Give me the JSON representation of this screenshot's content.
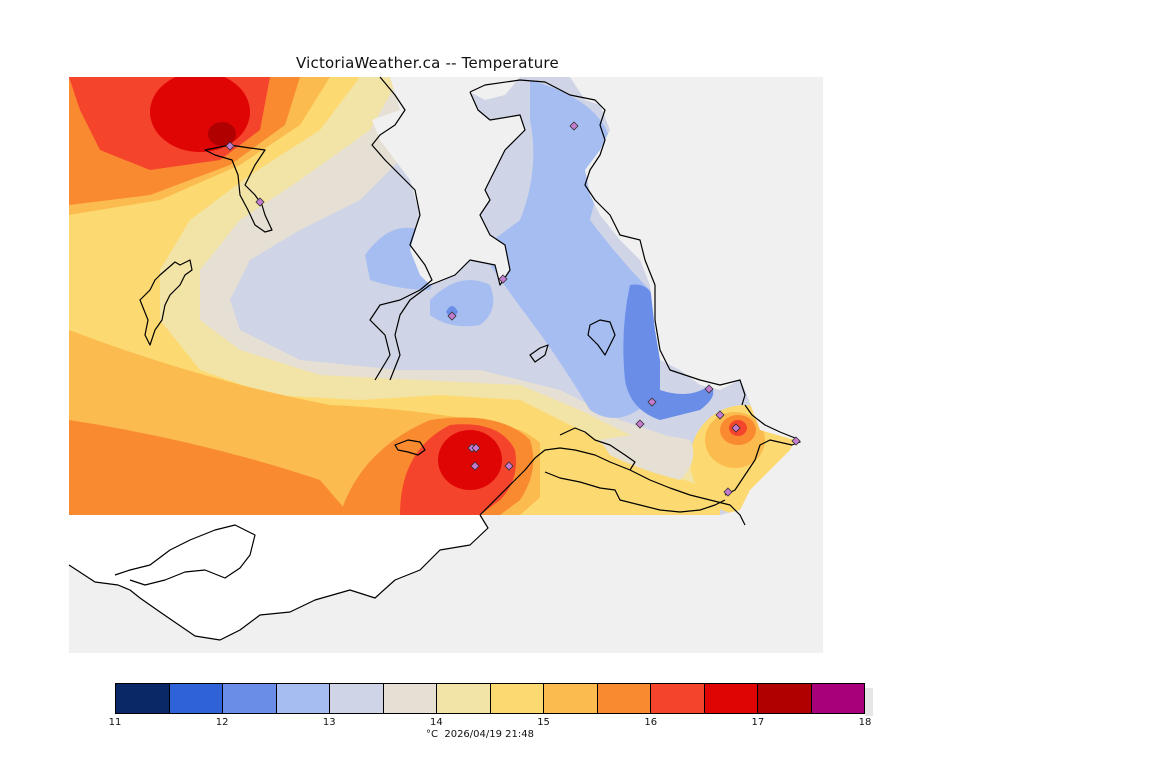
{
  "title": "VictoriaWeather.ca -- Temperature",
  "colorbar": {
    "unit_and_time": "°C  2026/04/19 21:48",
    "ticks": [
      "11",
      "12",
      "13",
      "14",
      "15",
      "16",
      "17",
      "18"
    ],
    "bins": [
      {
        "range": "11-11.5",
        "color": "#0a2866"
      },
      {
        "range": "11.5-12",
        "color": "#2e62d6"
      },
      {
        "range": "12-12.5",
        "color": "#6a8ee8"
      },
      {
        "range": "12.5-13",
        "color": "#a6bdf2"
      },
      {
        "range": "13-13.5",
        "color": "#cfd4e6"
      },
      {
        "range": "13.5-14",
        "color": "#e6e0d4"
      },
      {
        "range": "14-14.5",
        "color": "#f2e3a6"
      },
      {
        "range": "14.5-15",
        "color": "#fcd971"
      },
      {
        "range": "15-15.5",
        "color": "#fbbb4e"
      },
      {
        "range": "15.5-16",
        "color": "#fa8a30"
      },
      {
        "range": "16-16.5",
        "color": "#f5442c"
      },
      {
        "range": "16.5-17",
        "color": "#e00505"
      },
      {
        "range": "17-17.5",
        "color": "#b00000"
      },
      {
        "range": "17.5-18",
        "color": "#a8007a"
      }
    ]
  },
  "colors": {
    "map_background": "#f0f0f0",
    "land_outline": "#000000",
    "unfilled_land": "#ffffff",
    "station_marker": "#c47bd0"
  }
}
